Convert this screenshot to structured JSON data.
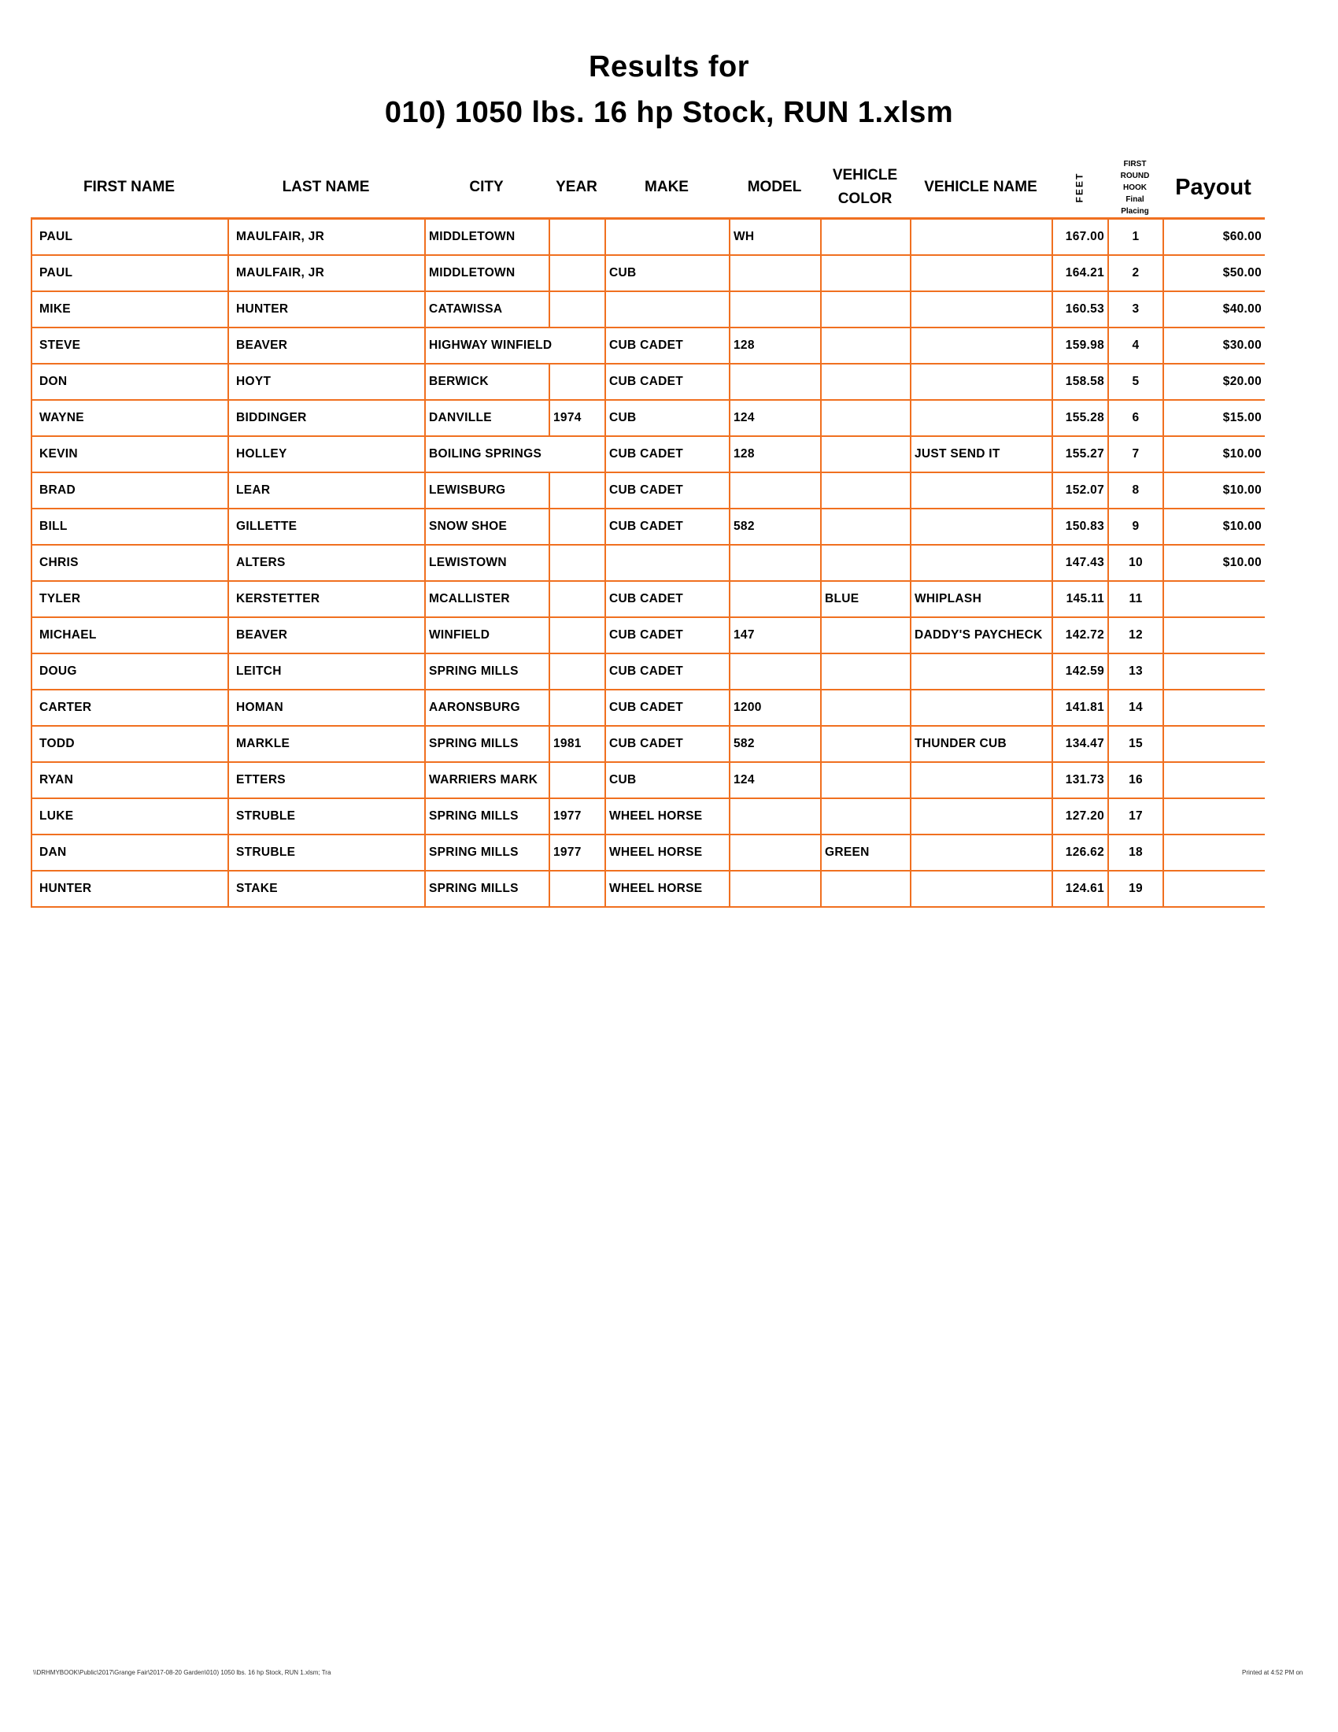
{
  "title_line1": "Results for",
  "title_line2": "010) 1050 lbs. 16 hp Stock, RUN 1.xlsm",
  "headers": {
    "first_name": "FIRST NAME",
    "last_name": "LAST NAME",
    "city": "CITY",
    "year": "YEAR",
    "make": "MAKE",
    "model": "MODEL",
    "vehicle_color_1": "VEHICLE",
    "vehicle_color_2": "COLOR",
    "vehicle_name": "VEHICLE NAME",
    "feet": "FEET",
    "placing": [
      "FIRST",
      "ROUND",
      "HOOK",
      "Final",
      "Placing"
    ],
    "payout": "Payout"
  },
  "accent_color": "#F07020",
  "rows": [
    [
      "PAUL",
      "MAULFAIR, JR",
      "MIDDLETOWN",
      "",
      "",
      "WH",
      "",
      "",
      "167.00",
      "1",
      "$60.00"
    ],
    [
      "PAUL",
      "MAULFAIR, JR",
      "MIDDLETOWN",
      "",
      "CUB",
      "",
      "",
      "",
      "164.21",
      "2",
      "$50.00"
    ],
    [
      "MIKE",
      "HUNTER",
      "CATAWISSA",
      "",
      "",
      "",
      "",
      "",
      "160.53",
      "3",
      "$40.00"
    ],
    [
      "STEVE",
      "BEAVER",
      "HIGHWAY  WINFIELD",
      "",
      "CUB CADET",
      "128",
      "",
      "",
      "159.98",
      "4",
      "$30.00"
    ],
    [
      "DON",
      "HOYT",
      "BERWICK",
      "",
      "CUB CADET",
      "",
      "",
      "",
      "158.58",
      "5",
      "$20.00"
    ],
    [
      "WAYNE",
      "BIDDINGER",
      "DANVILLE",
      "1974",
      "CUB",
      "124",
      "",
      "",
      "155.28",
      "6",
      "$15.00"
    ],
    [
      "KEVIN",
      "HOLLEY",
      "BOILING SPRINGS",
      "",
      "CUB CADET",
      "128",
      "",
      "JUST SEND IT",
      "155.27",
      "7",
      "$10.00"
    ],
    [
      "BRAD",
      "LEAR",
      "LEWISBURG",
      "",
      "CUB CADET",
      "",
      "",
      "",
      "152.07",
      "8",
      "$10.00"
    ],
    [
      "BILL",
      "GILLETTE",
      "SNOW SHOE",
      "",
      "CUB CADET",
      "582",
      "",
      "",
      "150.83",
      "9",
      "$10.00"
    ],
    [
      "CHRIS",
      "ALTERS",
      "LEWISTOWN",
      "",
      "",
      "",
      "",
      "",
      "147.43",
      "10",
      "$10.00"
    ],
    [
      "TYLER",
      "KERSTETTER",
      "MCALLISTER",
      "",
      "CUB CADET",
      "",
      "BLUE",
      "WHIPLASH",
      "145.11",
      "11",
      ""
    ],
    [
      "MICHAEL",
      "BEAVER",
      "WINFIELD",
      "",
      "CUB CADET",
      "147",
      "",
      "DADDY'S PAYCHECK",
      "142.72",
      "12",
      ""
    ],
    [
      "DOUG",
      "LEITCH",
      "SPRING MILLS",
      "",
      "CUB CADET",
      "",
      "",
      "",
      "142.59",
      "13",
      ""
    ],
    [
      "CARTER",
      "HOMAN",
      "AARONSBURG",
      "",
      "CUB CADET",
      "1200",
      "",
      "",
      "141.81",
      "14",
      ""
    ],
    [
      "TODD",
      "MARKLE",
      "SPRING MILLS",
      "1981",
      "CUB CADET",
      "582",
      "",
      "THUNDER CUB",
      "134.47",
      "15",
      ""
    ],
    [
      "RYAN",
      "ETTERS",
      "WARRIERS MARK",
      "",
      "CUB",
      "124",
      "",
      "",
      "131.73",
      "16",
      ""
    ],
    [
      "LUKE",
      "STRUBLE",
      "SPRING MILLS",
      "1977",
      "WHEEL HORSE",
      "",
      "",
      "",
      "127.20",
      "17",
      ""
    ],
    [
      "DAN",
      "STRUBLE",
      "SPRING MILLS",
      "1977",
      "WHEEL HORSE",
      "",
      "GREEN",
      "",
      "126.62",
      "18",
      ""
    ],
    [
      "HUNTER",
      "STAKE",
      "SPRING MILLS",
      "",
      "WHEEL HORSE",
      "",
      "",
      "",
      "124.61",
      "19",
      ""
    ]
  ],
  "footer": {
    "path": "\\\\DRHMYBOOK\\Public\\2017\\Grange Fair\\2017-08-20 Garden\\010) 1050 lbs. 16 hp Stock, RUN 1.xlsm;  Tra",
    "printed": "Printed at 4:52 PM on"
  }
}
